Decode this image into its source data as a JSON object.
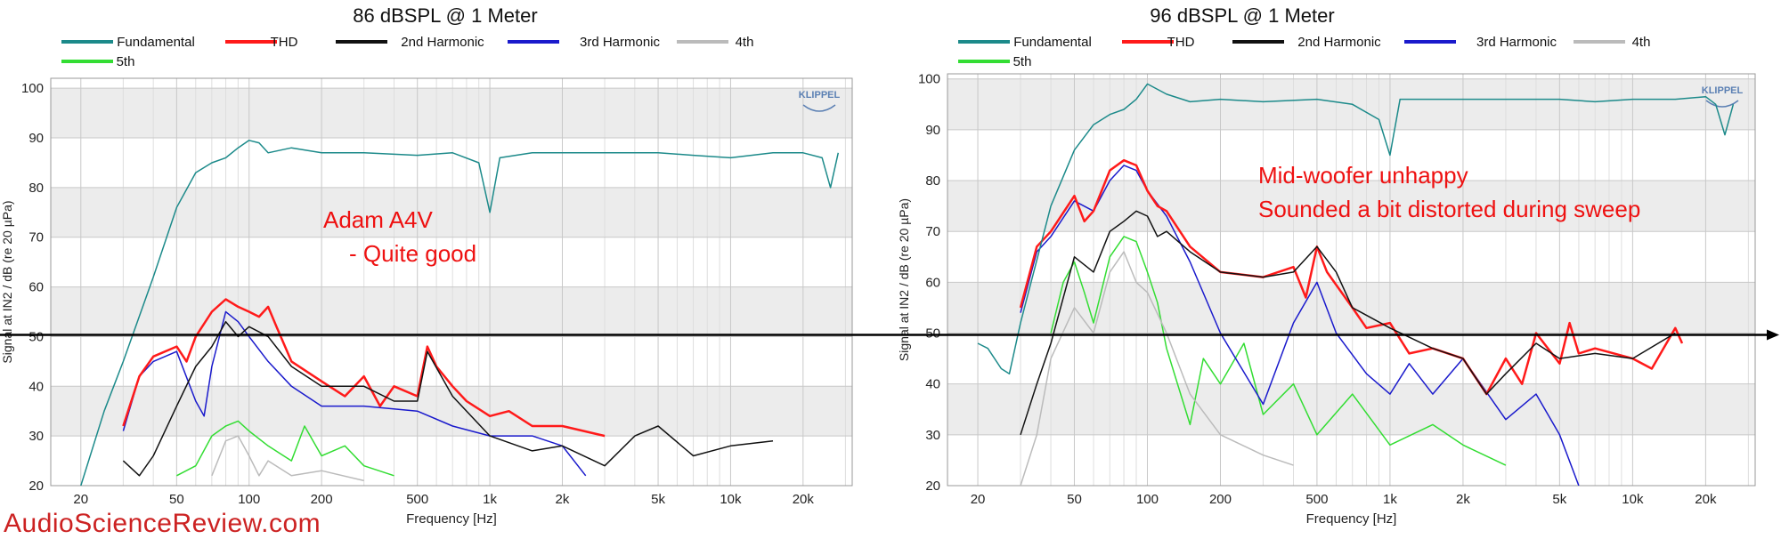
{
  "site_watermark": "AudioScienceReview.com",
  "reference_line_level": 50,
  "chart_data": [
    {
      "type": "line",
      "title": "86 dBSPL @ 1 Meter",
      "xlabel": "Frequency [Hz]",
      "ylabel": "Signal at IN2 / dB (re 20 µPa)",
      "xscale": "log",
      "xlim": [
        15,
        32000
      ],
      "ylim": [
        20,
        102
      ],
      "x_ticks": [
        "20",
        "50",
        "100",
        "200",
        "500",
        "1k",
        "2k",
        "5k",
        "10k",
        "20k"
      ],
      "y_ticks": [
        "20",
        "30",
        "40",
        "50",
        "60",
        "70",
        "80",
        "90",
        "100"
      ],
      "logo": "KLIPPEL",
      "annotations": [
        "Adam A4V",
        "- Quite good"
      ],
      "legend": [
        "Fundamental",
        "THD",
        "2nd Harmonic",
        "3rd Harmonic",
        "4th",
        "5th"
      ],
      "series": [
        {
          "name": "Fundamental",
          "color": "#1c8a8a",
          "x": [
            20,
            25,
            30,
            40,
            50,
            60,
            70,
            80,
            90,
            100,
            110,
            120,
            150,
            200,
            300,
            500,
            700,
            900,
            1000,
            1100,
            1500,
            2000,
            3000,
            5000,
            7000,
            10000,
            15000,
            20000,
            24000,
            26000,
            28000
          ],
          "y": [
            20,
            35,
            45,
            62,
            76,
            83,
            85,
            86,
            88,
            89.5,
            89,
            87,
            88,
            87,
            87,
            86.5,
            87,
            85,
            75,
            86,
            87,
            87,
            87,
            87,
            86.5,
            86,
            87,
            87,
            86,
            80,
            87
          ]
        },
        {
          "name": "THD",
          "color": "#ff1a1a",
          "x": [
            30,
            35,
            40,
            50,
            55,
            60,
            70,
            80,
            90,
            100,
            110,
            120,
            130,
            150,
            200,
            250,
            300,
            350,
            400,
            500,
            550,
            600,
            700,
            800,
            1000,
            1200,
            1500,
            2000,
            3000
          ],
          "y": [
            32,
            42,
            46,
            48,
            45,
            50,
            55,
            57.5,
            56,
            55,
            54,
            56,
            52,
            45,
            41,
            38,
            42,
            36,
            40,
            38,
            48,
            44,
            40,
            37,
            34,
            35,
            32,
            32,
            30
          ]
        },
        {
          "name": "2nd Harmonic",
          "color": "#111111",
          "x": [
            30,
            35,
            40,
            50,
            60,
            70,
            80,
            90,
            100,
            120,
            150,
            200,
            300,
            400,
            500,
            550,
            700,
            1000,
            1500,
            2000,
            3000,
            4000,
            5000,
            7000,
            10000,
            15000
          ],
          "y": [
            25,
            22,
            26,
            36,
            44,
            48,
            53,
            50,
            52,
            50,
            44,
            40,
            40,
            37,
            37,
            47,
            38,
            30,
            27,
            28,
            24,
            30,
            32,
            26,
            28,
            29
          ]
        },
        {
          "name": "3rd Harmonic",
          "color": "#1a1acc",
          "x": [
            30,
            35,
            40,
            50,
            60,
            65,
            70,
            80,
            90,
            100,
            120,
            150,
            200,
            300,
            500,
            700,
            1000,
            1500,
            2000,
            2500
          ],
          "y": [
            31,
            42,
            45,
            47,
            37,
            34,
            44,
            55,
            53,
            50,
            45,
            40,
            36,
            36,
            35,
            32,
            30,
            30,
            28,
            22
          ]
        },
        {
          "name": "4th",
          "color": "#bbbbbb",
          "x": [
            70,
            80,
            90,
            100,
            110,
            120,
            150,
            200,
            300
          ],
          "y": [
            22,
            29,
            30,
            26,
            22,
            25,
            22,
            23,
            21
          ]
        },
        {
          "name": "5th",
          "color": "#33dd33",
          "x": [
            50,
            60,
            70,
            80,
            90,
            100,
            120,
            150,
            170,
            200,
            250,
            300,
            400
          ],
          "y": [
            22,
            24,
            30,
            32,
            33,
            31,
            28,
            25,
            32,
            26,
            28,
            24,
            22
          ]
        }
      ]
    },
    {
      "type": "line",
      "title": "96 dBSPL @ 1 Meter",
      "xlabel": "Frequency [Hz]",
      "ylabel": "Signal at IN2 / dB (re 20 µPa)",
      "xscale": "log",
      "xlim": [
        15,
        32000
      ],
      "ylim": [
        20,
        101
      ],
      "x_ticks": [
        "20",
        "50",
        "100",
        "200",
        "500",
        "1k",
        "2k",
        "5k",
        "10k",
        "20k"
      ],
      "y_ticks": [
        "20",
        "30",
        "40",
        "50",
        "60",
        "70",
        "80",
        "90",
        "100"
      ],
      "logo": "KLIPPEL",
      "annotations": [
        "Mid-woofer unhappy",
        "Sounded a bit distorted during sweep"
      ],
      "legend": [
        "Fundamental",
        "THD",
        "2nd Harmonic",
        "3rd Harmonic",
        "4th",
        "5th"
      ],
      "series": [
        {
          "name": "Fundamental",
          "color": "#1c8a8a",
          "x": [
            20,
            22,
            25,
            27,
            30,
            40,
            50,
            60,
            70,
            80,
            90,
            100,
            120,
            150,
            200,
            300,
            500,
            700,
            900,
            1000,
            1100,
            1500,
            2000,
            3000,
            5000,
            7000,
            10000,
            15000,
            20000,
            22000,
            24000,
            26000
          ],
          "y": [
            48,
            47,
            43,
            42,
            52,
            75,
            86,
            91,
            93,
            94,
            96,
            99,
            97,
            95.5,
            96,
            95.5,
            96,
            95,
            92,
            85,
            96,
            96,
            96,
            96,
            96,
            95.5,
            96,
            96,
            96.5,
            95,
            89,
            95
          ]
        },
        {
          "name": "THD",
          "color": "#ff1a1a",
          "x": [
            30,
            35,
            40,
            50,
            55,
            60,
            70,
            80,
            90,
            100,
            110,
            120,
            150,
            200,
            300,
            400,
            450,
            500,
            550,
            700,
            800,
            1000,
            1200,
            1500,
            2000,
            2500,
            3000,
            3500,
            4000,
            5000,
            5500,
            6000,
            7000,
            10000,
            12000,
            15000,
            16000
          ],
          "y": [
            55,
            67,
            70,
            77,
            72,
            74,
            82,
            84,
            83,
            78,
            75,
            74,
            67,
            62,
            61,
            63,
            57,
            67,
            62,
            55,
            51,
            52,
            46,
            47,
            45,
            38,
            45,
            40,
            50,
            44,
            52,
            46,
            47,
            45,
            43,
            51,
            48
          ]
        },
        {
          "name": "2nd Harmonic",
          "color": "#111111",
          "x": [
            30,
            35,
            40,
            50,
            60,
            70,
            80,
            90,
            100,
            110,
            120,
            150,
            200,
            300,
            400,
            500,
            600,
            700,
            1000,
            1500,
            2000,
            2500,
            3000,
            4000,
            5000,
            7000,
            10000,
            15000
          ],
          "y": [
            30,
            40,
            48,
            65,
            62,
            70,
            72,
            74,
            73,
            69,
            70,
            66,
            62,
            61,
            62,
            67,
            62,
            55,
            51,
            47,
            45,
            38,
            42,
            48,
            45,
            46,
            45,
            50
          ]
        },
        {
          "name": "3rd Harmonic",
          "color": "#1a1acc",
          "x": [
            30,
            35,
            40,
            50,
            60,
            70,
            80,
            90,
            100,
            120,
            150,
            200,
            300,
            400,
            500,
            600,
            800,
            1000,
            1200,
            1500,
            2000,
            3000,
            4000,
            5000,
            6000
          ],
          "y": [
            54,
            66,
            69,
            76,
            74,
            80,
            83,
            82,
            78,
            73,
            64,
            50,
            36,
            52,
            60,
            50,
            42,
            38,
            44,
            38,
            45,
            33,
            38,
            30,
            20
          ]
        },
        {
          "name": "4th",
          "color": "#bbbbbb",
          "x": [
            30,
            35,
            40,
            50,
            60,
            70,
            80,
            90,
            100,
            120,
            150,
            200,
            300,
            400
          ],
          "y": [
            20,
            30,
            45,
            55,
            50,
            62,
            66,
            60,
            58,
            50,
            38,
            30,
            26,
            24
          ]
        },
        {
          "name": "5th",
          "color": "#33dd33",
          "x": [
            40,
            45,
            50,
            55,
            60,
            70,
            80,
            90,
            100,
            110,
            120,
            150,
            170,
            200,
            250,
            300,
            400,
            500,
            700,
            1000,
            1500,
            2000,
            3000
          ],
          "y": [
            50,
            60,
            64,
            58,
            52,
            65,
            69,
            68,
            62,
            56,
            47,
            32,
            45,
            40,
            48,
            34,
            40,
            30,
            38,
            28,
            32,
            28,
            24
          ]
        }
      ]
    }
  ]
}
